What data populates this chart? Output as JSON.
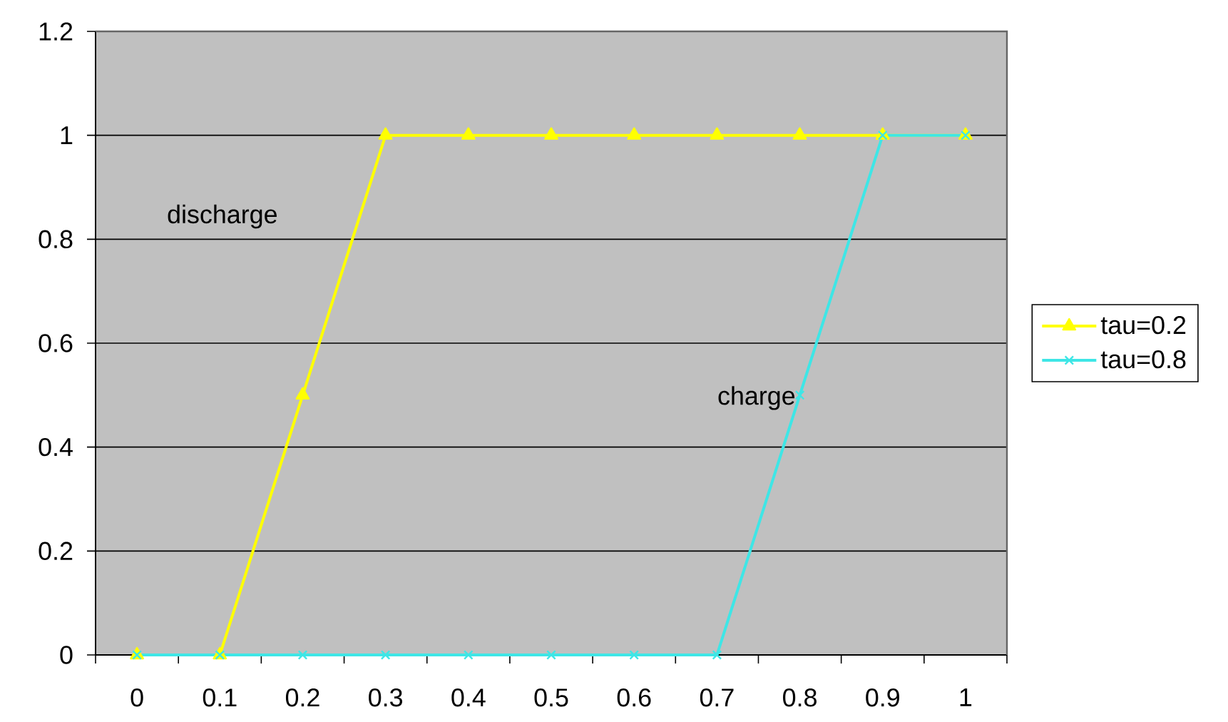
{
  "chart_data": {
    "type": "line",
    "categories": [
      "0",
      "0.1",
      "0.2",
      "0.3",
      "0.4",
      "0.5",
      "0.6",
      "0.7",
      "0.8",
      "0.9",
      "1"
    ],
    "series": [
      {
        "name": "tau=0.2",
        "color": "#ffff00",
        "marker": "triangle",
        "values": [
          0,
          0,
          0.5,
          1,
          1,
          1,
          1,
          1,
          1,
          1,
          1
        ]
      },
      {
        "name": "tau=0.8",
        "color": "#3ee6e6",
        "marker": "cross",
        "values": [
          0,
          0,
          0,
          0,
          0,
          0,
          0,
          0,
          0.5,
          1,
          1
        ]
      }
    ],
    "ylim": [
      0,
      1.2
    ],
    "yticks": [
      0,
      0.2,
      0.4,
      0.6,
      0.8,
      1,
      1.2
    ],
    "grid": "y",
    "legend": "right",
    "annotations": [
      "discharge",
      "charge"
    ]
  }
}
